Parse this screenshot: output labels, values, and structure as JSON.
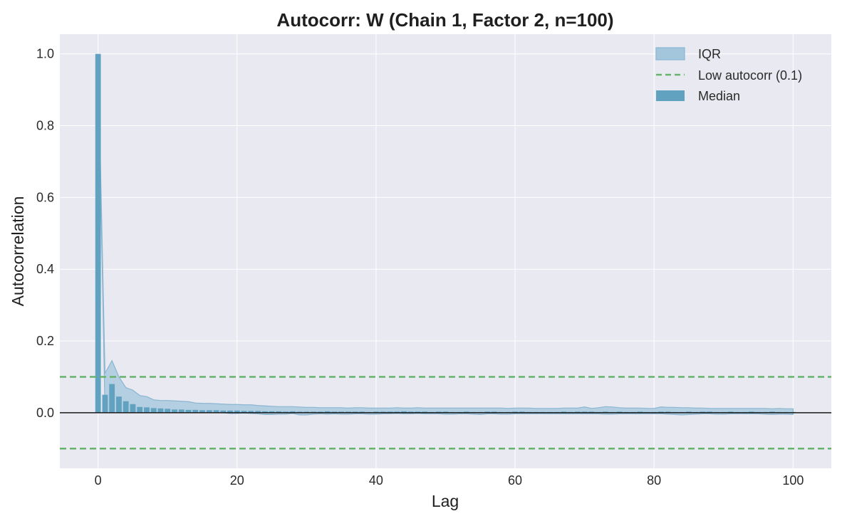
{
  "chart_data": {
    "type": "bar",
    "title": "Autocorr: W (Chain 1, Factor 2, n=100)",
    "xlabel": "Lag",
    "ylabel": "Autocorrelation",
    "xlim": [
      -5.5,
      105.5
    ],
    "ylim": [
      -0.155,
      1.055
    ],
    "xticks": [
      0,
      20,
      40,
      60,
      80,
      100
    ],
    "yticks": [
      0.0,
      0.2,
      0.4,
      0.6,
      0.8,
      1.0
    ],
    "xtick_labels": [
      "0",
      "20",
      "40",
      "60",
      "80",
      "100"
    ],
    "ytick_labels": [
      "0.0",
      "0.2",
      "0.4",
      "0.6",
      "0.8",
      "1.0"
    ],
    "grid": true,
    "legend_position": "top-right",
    "legend": [
      "IQR",
      "Low autocorr (0.1)",
      "Median"
    ],
    "reference_lines": [
      {
        "y": 0.1,
        "style": "dashed",
        "label": "Low autocorr (0.1)"
      },
      {
        "y": -0.1,
        "style": "dashed",
        "label": ""
      },
      {
        "y": 0.0,
        "style": "solid",
        "label": ""
      }
    ],
    "lags_start": 0,
    "median": [
      1.0,
      0.05,
      0.08,
      0.045,
      0.032,
      0.024,
      0.016,
      0.015,
      0.013,
      0.012,
      0.011,
      0.009,
      0.009,
      0.008,
      0.008,
      0.007,
      0.007,
      0.007,
      0.006,
      0.006,
      0.006,
      0.005,
      0.005,
      0.005,
      0.004,
      0.004,
      0.004,
      0.003,
      0.004,
      0.003,
      0.003,
      0.003,
      0.003,
      0.004,
      0.003,
      0.003,
      0.003,
      0.003,
      0.003,
      0.002,
      0.003,
      0.003,
      0.003,
      0.003,
      0.004,
      0.003,
      0.003,
      0.003,
      0.002,
      0.003,
      0.003,
      0.002,
      0.002,
      0.003,
      0.002,
      0.002,
      0.003,
      0.003,
      0.002,
      0.002,
      0.003,
      0.003,
      0.002,
      0.002,
      0.002,
      0.002,
      0.002,
      0.003,
      0.002,
      0.003,
      0.003,
      0.003,
      0.002,
      0.003,
      0.002,
      0.003,
      0.002,
      0.002,
      0.003,
      0.002,
      0.002,
      0.003,
      0.003,
      0.002,
      0.002,
      0.003,
      0.002,
      0.003,
      0.003,
      0.002,
      0.002,
      0.003,
      0.002,
      0.002,
      0.003,
      0.002,
      0.002,
      0.003,
      0.002,
      0.002,
      0.002
    ],
    "iqr_upper": [
      1.0,
      0.11,
      0.145,
      0.1,
      0.07,
      0.063,
      0.048,
      0.045,
      0.036,
      0.034,
      0.034,
      0.033,
      0.032,
      0.031,
      0.027,
      0.026,
      0.026,
      0.025,
      0.024,
      0.023,
      0.023,
      0.022,
      0.022,
      0.02,
      0.019,
      0.018,
      0.017,
      0.017,
      0.017,
      0.016,
      0.015,
      0.015,
      0.014,
      0.014,
      0.014,
      0.014,
      0.013,
      0.014,
      0.014,
      0.013,
      0.013,
      0.013,
      0.013,
      0.014,
      0.013,
      0.013,
      0.014,
      0.013,
      0.013,
      0.013,
      0.013,
      0.013,
      0.013,
      0.013,
      0.013,
      0.013,
      0.013,
      0.013,
      0.013,
      0.012,
      0.013,
      0.013,
      0.013,
      0.012,
      0.012,
      0.012,
      0.012,
      0.013,
      0.013,
      0.013,
      0.016,
      0.012,
      0.014,
      0.017,
      0.016,
      0.014,
      0.013,
      0.013,
      0.013,
      0.012,
      0.012,
      0.016,
      0.015,
      0.015,
      0.014,
      0.014,
      0.013,
      0.013,
      0.012,
      0.012,
      0.012,
      0.012,
      0.012,
      0.012,
      0.012,
      0.012,
      0.012,
      0.011,
      0.012,
      0.011,
      0.011
    ],
    "iqr_lower": [
      1.0,
      0.0,
      0.0,
      0.0,
      0.0,
      0.0,
      0.0,
      0.0,
      0.0,
      0.0,
      0.0,
      0.0,
      0.0,
      0.0,
      0.0,
      0.0,
      0.0,
      0.0,
      0.0,
      -0.002,
      -0.002,
      -0.001,
      -0.002,
      -0.003,
      -0.005,
      -0.005,
      -0.004,
      -0.004,
      -0.002,
      -0.006,
      -0.006,
      -0.004,
      -0.003,
      -0.004,
      -0.003,
      -0.004,
      -0.004,
      -0.003,
      -0.003,
      -0.004,
      -0.004,
      -0.003,
      -0.003,
      -0.002,
      -0.003,
      -0.003,
      -0.002,
      -0.003,
      -0.003,
      -0.003,
      -0.004,
      -0.004,
      -0.003,
      -0.003,
      -0.004,
      -0.005,
      -0.003,
      -0.003,
      -0.004,
      -0.004,
      -0.003,
      -0.003,
      -0.003,
      -0.003,
      -0.003,
      -0.003,
      -0.003,
      -0.003,
      -0.003,
      -0.003,
      -0.003,
      -0.003,
      -0.003,
      -0.004,
      -0.004,
      -0.003,
      -0.003,
      -0.003,
      -0.003,
      -0.003,
      -0.003,
      -0.003,
      -0.004,
      -0.005,
      -0.006,
      -0.005,
      -0.004,
      -0.003,
      -0.003,
      -0.004,
      -0.004,
      -0.003,
      -0.003,
      -0.003,
      -0.003,
      -0.003,
      -0.004,
      -0.005,
      -0.004,
      -0.004,
      -0.005
    ],
    "colors": {
      "median_bar": "#62a2c1",
      "iqr_fill": "#a3c6dc",
      "iqr_edge": "#8ab6d2",
      "threshold_line": "#66b36b",
      "zero_line": "#1a1a1a",
      "plot_background": "#e9e9f1",
      "grid": "#ffffff"
    }
  }
}
